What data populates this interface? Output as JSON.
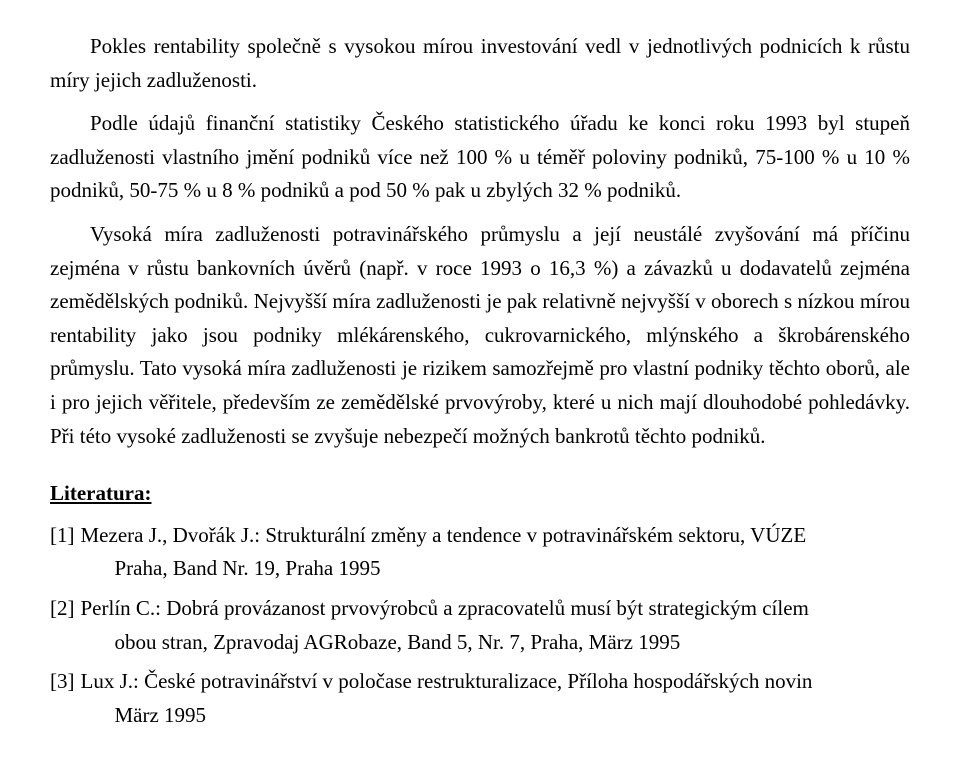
{
  "paragraphs": {
    "p1": "Pokles rentability společně s vysokou mírou investování vedl v jednotlivých podnicích k růstu míry jejich zadluženosti.",
    "p2": "Podle údajů finanční statistiky Českého statistického úřadu ke konci roku 1993 byl stupeň zadluženosti vlastního jmění podniků více než 100 % u téměř poloviny podniků, 75-100 % u 10 % podniků, 50-75 % u 8 % podniků a pod 50 % pak u zbylých 32 % podniků.",
    "p3": "Vysoká míra zadluženosti potravinářského průmyslu a její neustálé zvyšování má příčinu zejména v růstu bankovních úvěrů (např. v roce 1993 o 16,3 %) a závazků u dodavatelů zejména zemědělských podniků. Nejvyšší míra zadluženosti je pak relativně nejvyšší v oborech s nízkou mírou rentability jako jsou podniky mlékárenského, cukrovarnického, mlýnského a škrobárenského průmyslu. Tato vysoká míra zadluženosti je rizikem samozřejmě pro vlastní podniky těchto oborů, ale i pro jejich věřitele, především ze zemědělské prvovýroby, které u nich mají dlouhodobé pohledávky. Při této vysoké zadluženosti se zvyšuje nebezpečí možných bankrotů těchto podniků."
  },
  "literature": {
    "heading": "Literatura:",
    "items": [
      {
        "num": "[1]",
        "line1": "Mezera J., Dvořák J.: Strukturální změny a tendence v potravinářském sektoru, VÚZE",
        "line2": "Praha, Band Nr. 19, Praha 1995"
      },
      {
        "num": "[2]",
        "line1": "Perlín C.: Dobrá provázanost prvovýrobců a zpracovatelů musí být strategickým cílem",
        "line2": "obou stran, Zpravodaj AGRobaze, Band 5, Nr. 7, Praha, März 1995"
      },
      {
        "num": "[3]",
        "line1": "Lux J.: České potravinářství v poločase restrukturalizace, Příloha hospodářských novin",
        "line2": "März 1995"
      }
    ]
  }
}
